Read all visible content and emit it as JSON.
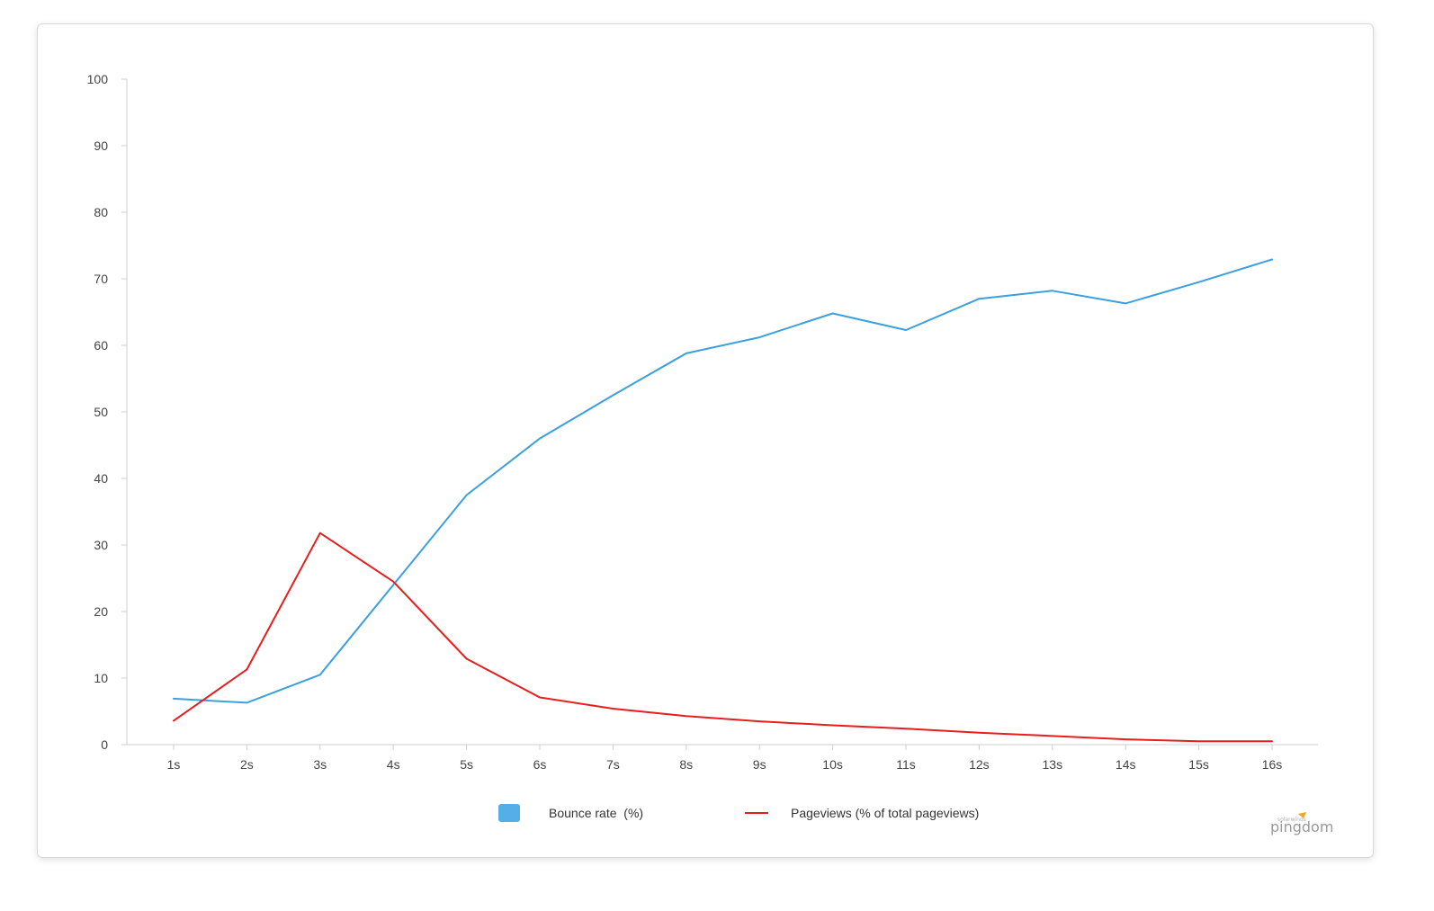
{
  "chart_data": {
    "type": "line",
    "title": "",
    "xlabel": "",
    "ylabel": "",
    "categories": [
      "1s",
      "2s",
      "3s",
      "4s",
      "5s",
      "6s",
      "7s",
      "8s",
      "9s",
      "10s",
      "11s",
      "12s",
      "13s",
      "14s",
      "15s",
      "16s"
    ],
    "ylim": [
      0,
      100
    ],
    "yticks": [
      0,
      10,
      20,
      30,
      40,
      50,
      60,
      70,
      80,
      90,
      100
    ],
    "grid": false,
    "legend_position": "bottom-center",
    "series": [
      {
        "name": "Bounce rate  (%)",
        "color": "#3aa0e0",
        "legend_marker": "square",
        "values": [
          6.9,
          6.3,
          10.5,
          24.0,
          37.5,
          46.0,
          52.5,
          58.8,
          61.2,
          64.8,
          62.3,
          67.0,
          68.2,
          66.3,
          69.5,
          72.9
        ]
      },
      {
        "name": "Pageviews (% of total pageviews)",
        "color": "#e61e1e",
        "legend_marker": "line",
        "values": [
          3.6,
          11.3,
          31.8,
          24.5,
          12.9,
          7.1,
          5.4,
          4.3,
          3.5,
          2.9,
          2.4,
          1.8,
          1.3,
          0.8,
          0.5,
          0.5
        ]
      }
    ]
  },
  "brand": {
    "small_text": "solarwinds",
    "name": "pingdom",
    "accent_color": "#f5a623"
  }
}
